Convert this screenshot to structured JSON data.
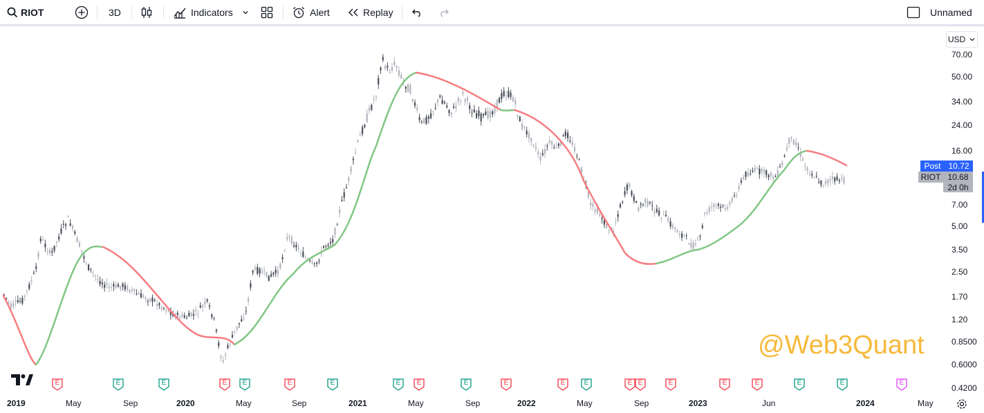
{
  "toolbar": {
    "symbol": "RIOT",
    "mode_3d": "3D",
    "indicators": "Indicators",
    "alert": "Alert",
    "replay": "Replay",
    "layout_name": "Unnamed"
  },
  "price_scale": {
    "currency": "USD",
    "labels": [
      "70.00",
      "50.00",
      "34.00",
      "24.00",
      "16.00",
      "7.00",
      "5.00",
      "3.50",
      "2.50",
      "1.70",
      "1.20",
      "0.8500",
      "0.6000",
      "0.4200"
    ],
    "post_label": "Post",
    "post_price": "10.72",
    "symbol_label": "RIOT",
    "last_price": "10.68",
    "countdown": "2d 0h"
  },
  "time_scale": {
    "labels": [
      "2019",
      "May",
      "Sep",
      "2020",
      "May",
      "Sep",
      "2021",
      "May",
      "Sep",
      "2022",
      "May",
      "Sep",
      "2023",
      "Jun",
      "2024",
      "May"
    ]
  },
  "watermark": "@Web3Quant",
  "events": [
    {
      "type": "earnings-red",
      "letter": "E"
    },
    {
      "type": "earnings-green",
      "letter": "E"
    },
    {
      "type": "earnings-green",
      "letter": "E"
    },
    {
      "type": "earnings-red",
      "letter": "E"
    },
    {
      "type": "earnings-green",
      "letter": "E"
    },
    {
      "type": "earnings-red",
      "letter": "E"
    },
    {
      "type": "earnings-green",
      "letter": "E"
    },
    {
      "type": "earnings-green",
      "letter": "E"
    },
    {
      "type": "earnings-red",
      "letter": "E"
    },
    {
      "type": "earnings-green",
      "letter": "E"
    },
    {
      "type": "earnings-red",
      "letter": "E"
    },
    {
      "type": "earnings-red",
      "letter": "E"
    },
    {
      "type": "earnings-green",
      "letter": "E"
    },
    {
      "type": "earnings-red",
      "letter": "E"
    },
    {
      "type": "earnings-red",
      "letter": "E"
    },
    {
      "type": "earnings-red",
      "letter": "E"
    },
    {
      "type": "earnings-red",
      "letter": "E"
    },
    {
      "type": "earnings-red",
      "letter": "E"
    },
    {
      "type": "earnings-green",
      "letter": "E"
    },
    {
      "type": "earnings-green",
      "letter": "E"
    },
    {
      "type": "earnings-future",
      "letter": "E"
    }
  ],
  "colors": {
    "up_candle": "#b2b5be",
    "down_candle": "#4a4e5a",
    "ma_up": "#81c784",
    "ma_down": "#f77c80",
    "post_badge": "#2962ff",
    "last_badge": "#b2b5be",
    "earnings_red": "#f23645",
    "earnings_green": "#089981",
    "earnings_future": "#e040fb"
  }
}
